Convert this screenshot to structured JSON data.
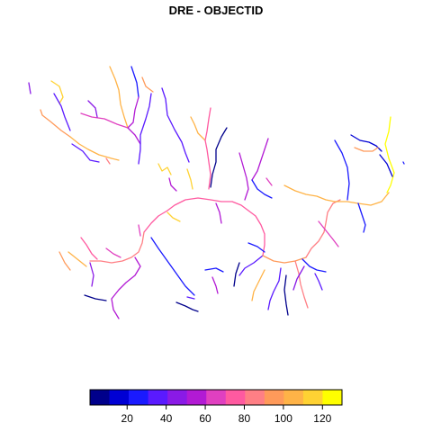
{
  "title": "DRE - OBJECTID",
  "legend": {
    "ticks": [
      "20",
      "40",
      "60",
      "80",
      "100",
      "120"
    ],
    "tick_values": [
      20,
      40,
      60,
      80,
      100,
      120
    ],
    "range": [
      1,
      130
    ],
    "colors": [
      "#00008b",
      "#0000d4",
      "#1a1aff",
      "#5a1aff",
      "#8a1ae6",
      "#b21ad4",
      "#e040c0",
      "#ff5aa0",
      "#ff7f85",
      "#ff9a5a",
      "#ffb347",
      "#ffd233",
      "#ffff00"
    ]
  }
}
